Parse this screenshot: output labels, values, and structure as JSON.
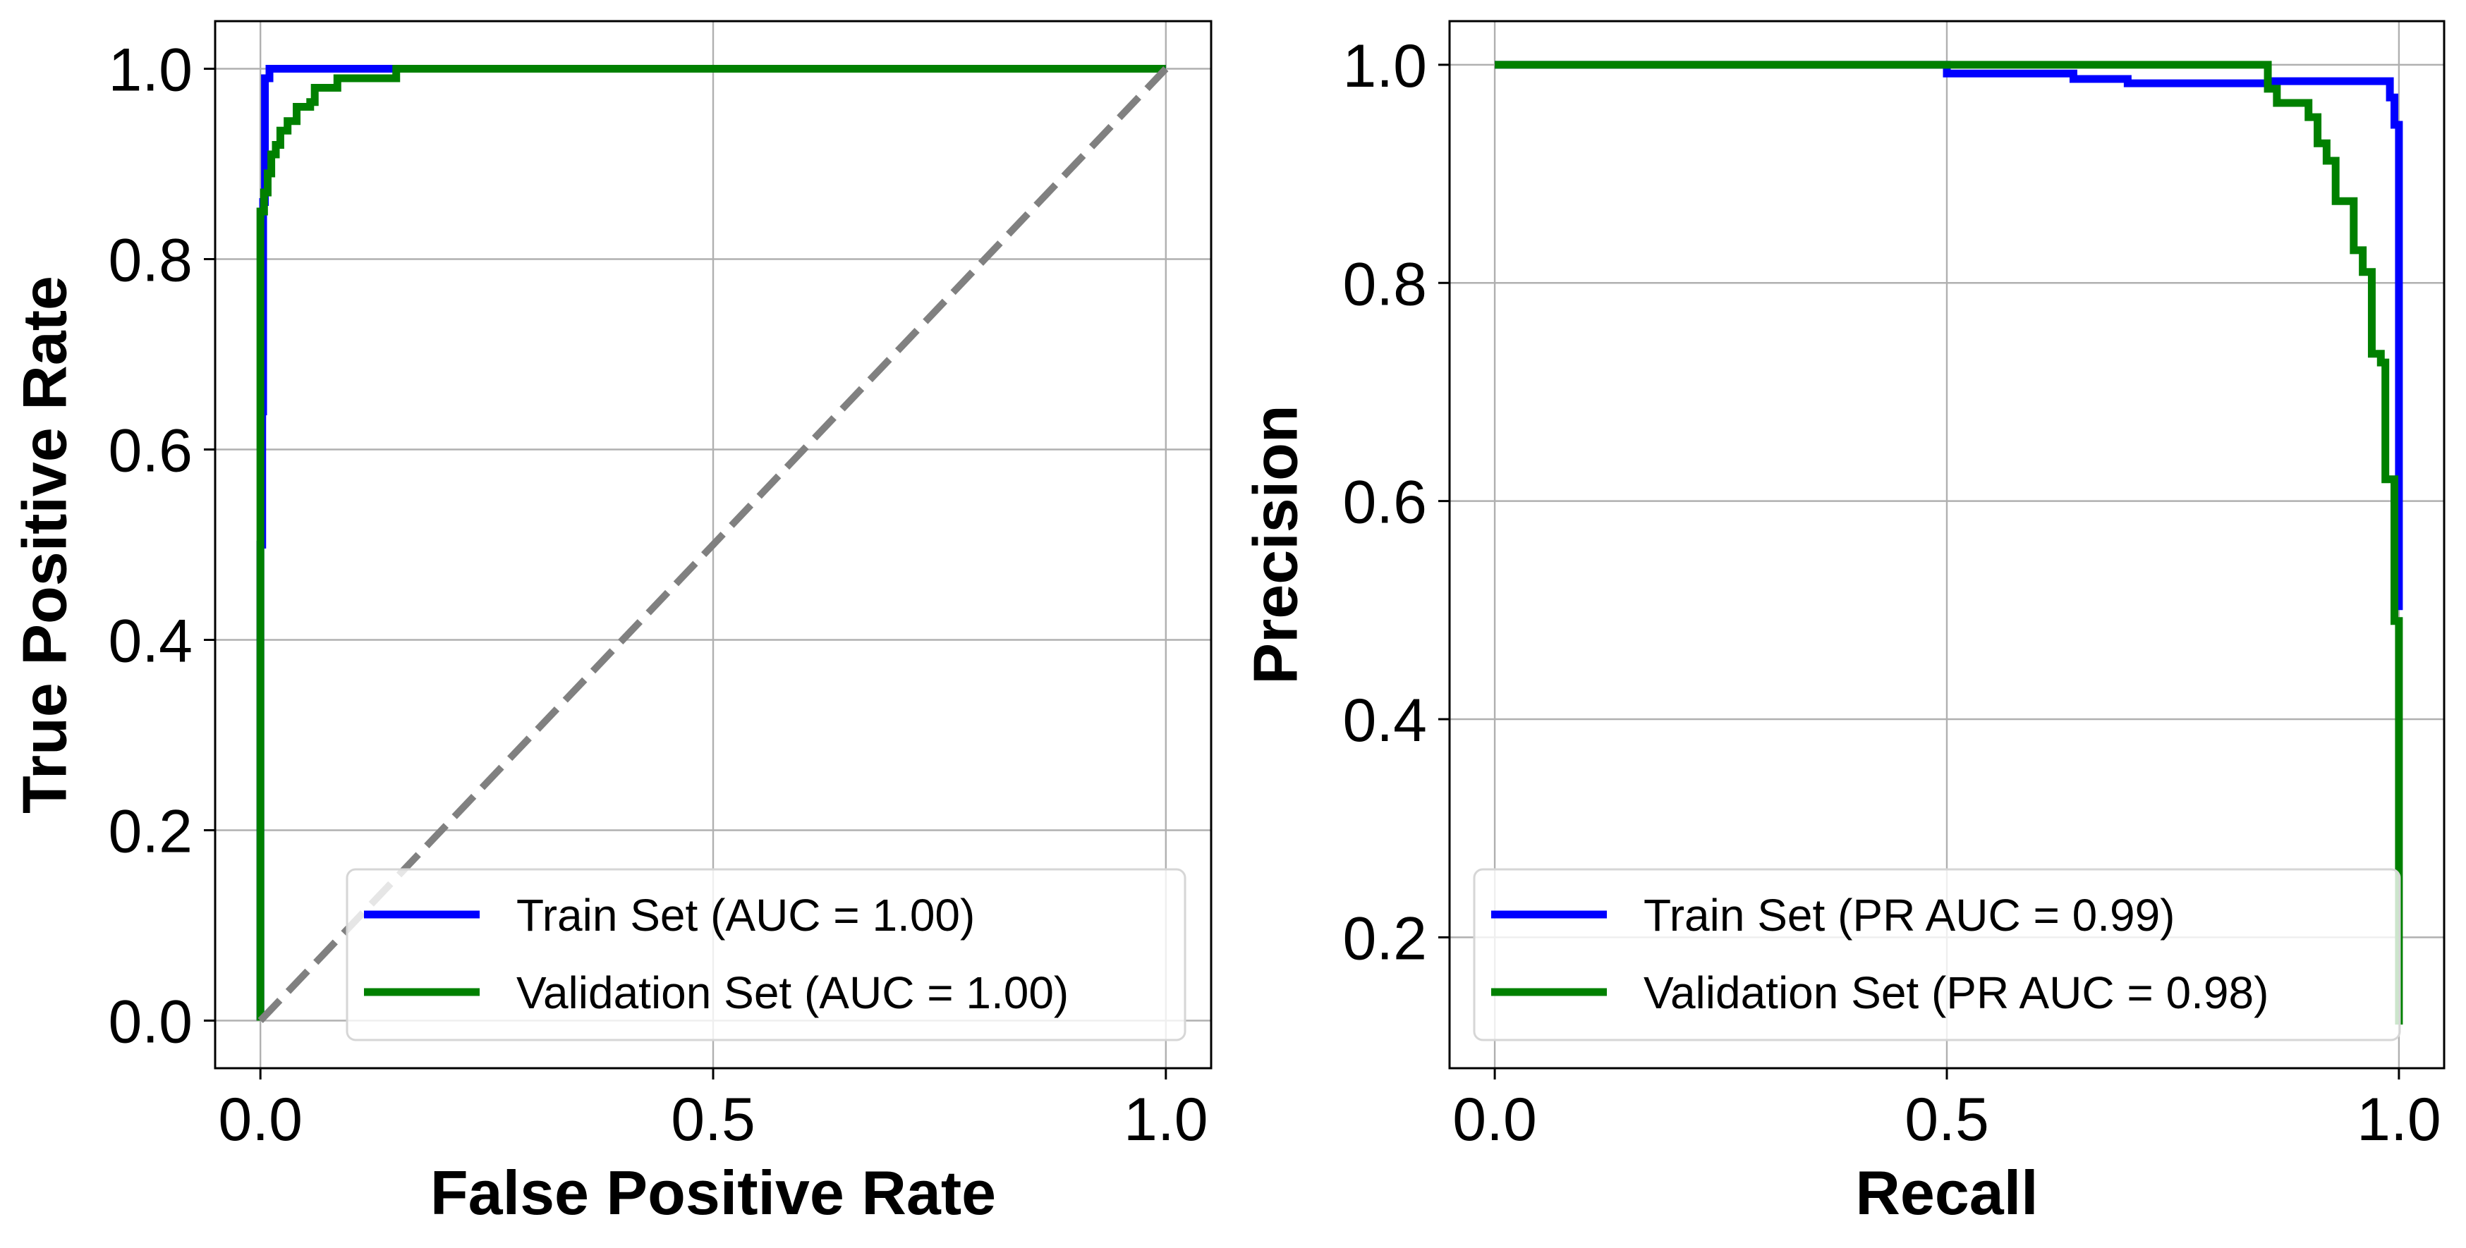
{
  "chart_data": [
    {
      "type": "line",
      "xlabel": "False Positive Rate",
      "ylabel": "True Positive Rate",
      "xlim": [
        -0.05,
        1.05
      ],
      "ylim": [
        -0.05,
        1.05
      ],
      "xticks": [
        0.0,
        0.5,
        1.0
      ],
      "xtick_labels": [
        "0.0",
        "0.5",
        "1.0"
      ],
      "yticks": [
        0.0,
        0.2,
        0.4,
        0.6,
        0.8,
        1.0
      ],
      "ytick_labels": [
        "0.0",
        "0.2",
        "0.4",
        "0.6",
        "0.8",
        "1.0"
      ],
      "grid": true,
      "legend_position": "lower-right",
      "series": [
        {
          "name": "Train Set (AUC = 1.00)",
          "color": "#0000ff",
          "style": "solid",
          "points": [
            [
              0,
              0
            ],
            [
              0,
              0.5
            ],
            [
              0.002,
              0.5
            ],
            [
              0.002,
              0.64
            ],
            [
              0.003,
              0.64
            ],
            [
              0.003,
              0.86
            ],
            [
              0.005,
              0.86
            ],
            [
              0.005,
              0.99
            ],
            [
              0.01,
              0.99
            ],
            [
              0.01,
              1.0
            ],
            [
              1.0,
              1.0
            ]
          ]
        },
        {
          "name": "Validation Set (AUC = 1.00)",
          "color": "#008000",
          "style": "solid",
          "points": [
            [
              0,
              0
            ],
            [
              0,
              0.85
            ],
            [
              0.004,
              0.85
            ],
            [
              0.004,
              0.87
            ],
            [
              0.008,
              0.87
            ],
            [
              0.008,
              0.89
            ],
            [
              0.012,
              0.89
            ],
            [
              0.012,
              0.91
            ],
            [
              0.017,
              0.91
            ],
            [
              0.017,
              0.92
            ],
            [
              0.022,
              0.92
            ],
            [
              0.022,
              0.935
            ],
            [
              0.03,
              0.935
            ],
            [
              0.03,
              0.945
            ],
            [
              0.04,
              0.945
            ],
            [
              0.04,
              0.96
            ],
            [
              0.055,
              0.96
            ],
            [
              0.055,
              0.965
            ],
            [
              0.06,
              0.965
            ],
            [
              0.06,
              0.98
            ],
            [
              0.085,
              0.98
            ],
            [
              0.085,
              0.99
            ],
            [
              0.15,
              0.99
            ],
            [
              0.15,
              1.0
            ],
            [
              1.0,
              1.0
            ]
          ]
        },
        {
          "name": "",
          "color": "#808080",
          "style": "dashed",
          "points": [
            [
              0,
              0
            ],
            [
              1,
              1
            ]
          ]
        }
      ]
    },
    {
      "type": "line",
      "xlabel": "Recall",
      "ylabel": "Precision",
      "xlim": [
        -0.05,
        1.05
      ],
      "ylim": [
        0.08,
        1.04
      ],
      "xticks": [
        0.0,
        0.5,
        1.0
      ],
      "xtick_labels": [
        "0.0",
        "0.5",
        "1.0"
      ],
      "yticks": [
        0.2,
        0.4,
        0.6,
        0.8,
        1.0
      ],
      "ytick_labels": [
        "0.2",
        "0.4",
        "0.6",
        "0.8",
        "1.0"
      ],
      "grid": true,
      "legend_position": "lower-left",
      "series": [
        {
          "name": "Train Set (PR AUC = 0.99)",
          "color": "#0000ff",
          "style": "solid",
          "points": [
            [
              0,
              1.0
            ],
            [
              0.5,
              1.0
            ],
            [
              0.5,
              0.992
            ],
            [
              0.64,
              0.992
            ],
            [
              0.64,
              0.987
            ],
            [
              0.7,
              0.987
            ],
            [
              0.7,
              0.983
            ],
            [
              0.86,
              0.983
            ],
            [
              0.86,
              0.985
            ],
            [
              0.99,
              0.985
            ],
            [
              0.99,
              0.97
            ],
            [
              0.995,
              0.97
            ],
            [
              0.995,
              0.945
            ],
            [
              1.0,
              0.945
            ],
            [
              1.0,
              0.5
            ]
          ]
        },
        {
          "name": "Validation Set (PR AUC = 0.98)",
          "color": "#008000",
          "style": "solid",
          "points": [
            [
              0,
              1.0
            ],
            [
              0.855,
              1.0
            ],
            [
              0.855,
              0.978
            ],
            [
              0.865,
              0.978
            ],
            [
              0.865,
              0.965
            ],
            [
              0.9,
              0.965
            ],
            [
              0.9,
              0.952
            ],
            [
              0.91,
              0.952
            ],
            [
              0.91,
              0.928
            ],
            [
              0.92,
              0.928
            ],
            [
              0.92,
              0.912
            ],
            [
              0.93,
              0.912
            ],
            [
              0.93,
              0.875
            ],
            [
              0.95,
              0.875
            ],
            [
              0.95,
              0.83
            ],
            [
              0.96,
              0.83
            ],
            [
              0.96,
              0.81
            ],
            [
              0.97,
              0.81
            ],
            [
              0.97,
              0.735
            ],
            [
              0.98,
              0.735
            ],
            [
              0.98,
              0.727
            ],
            [
              0.985,
              0.727
            ],
            [
              0.985,
              0.62
            ],
            [
              0.995,
              0.62
            ],
            [
              0.995,
              0.49
            ],
            [
              1.0,
              0.49
            ],
            [
              1.0,
              0.12
            ]
          ]
        }
      ]
    }
  ]
}
